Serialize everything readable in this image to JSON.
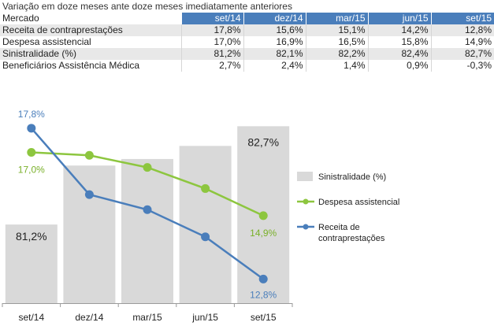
{
  "table": {
    "title": "Variação em doze meses ante doze meses imediatamente anteriores",
    "corner": "Mercado",
    "columns": [
      "set/14",
      "dez/14",
      "mar/15",
      "jun/15",
      "set/15"
    ],
    "rows": [
      {
        "label": "Receita de contraprestações",
        "values": [
          "17,8%",
          "15,6%",
          "15,1%",
          "14,2%",
          "12,8%"
        ]
      },
      {
        "label": "Despesa assistencial",
        "values": [
          "17,0%",
          "16,9%",
          "16,5%",
          "15,8%",
          "14,9%"
        ]
      },
      {
        "label": "Sinistralidade (%)",
        "values": [
          "81,2%",
          "82,1%",
          "82,2%",
          "82,4%",
          "82,7%"
        ]
      },
      {
        "label": "Beneficiários Assistência Médica",
        "values": [
          "2,7%",
          "2,4%",
          "1,4%",
          "0,9%",
          "-0,3%"
        ]
      }
    ]
  },
  "chart_data": {
    "type": "bar+line",
    "categories": [
      "set/14",
      "dez/14",
      "mar/15",
      "jun/15",
      "set/15"
    ],
    "bar_series": {
      "name": "Sinistralidade (%)",
      "values": [
        81.2,
        82.1,
        82.2,
        82.4,
        82.7
      ],
      "ylim": [
        80.0,
        82.8
      ],
      "data_labels": [
        "81,2%",
        "",
        "",
        "",
        "82,7%"
      ],
      "color": "#d9d9d9"
    },
    "line_series": [
      {
        "name": "Despesa assistencial",
        "values": [
          17.0,
          16.9,
          16.5,
          15.8,
          14.9
        ],
        "color": "#8dc63f",
        "label_color": "#7ab02a",
        "data_labels": [
          "17,0%",
          "",
          "",
          "",
          "14,9%"
        ]
      },
      {
        "name": "Receita de contraprestações",
        "values": [
          17.8,
          15.6,
          15.1,
          14.2,
          12.8
        ],
        "color": "#4a7ebb",
        "label_color": "#4a7ebb",
        "data_labels": [
          "17,8%",
          "",
          "",
          "",
          "12,8%"
        ]
      }
    ],
    "line_ylim": [
      12.0,
      18.5
    ],
    "legend": [
      {
        "name": "Sinistralidade (%)",
        "kind": "bar"
      },
      {
        "name": "Despesa assistencial",
        "kind": "line"
      },
      {
        "name": "Receita de contraprestações",
        "kind": "line",
        "lines": [
          "Receita de",
          "contraprestações"
        ]
      }
    ],
    "legend_position": "right"
  }
}
